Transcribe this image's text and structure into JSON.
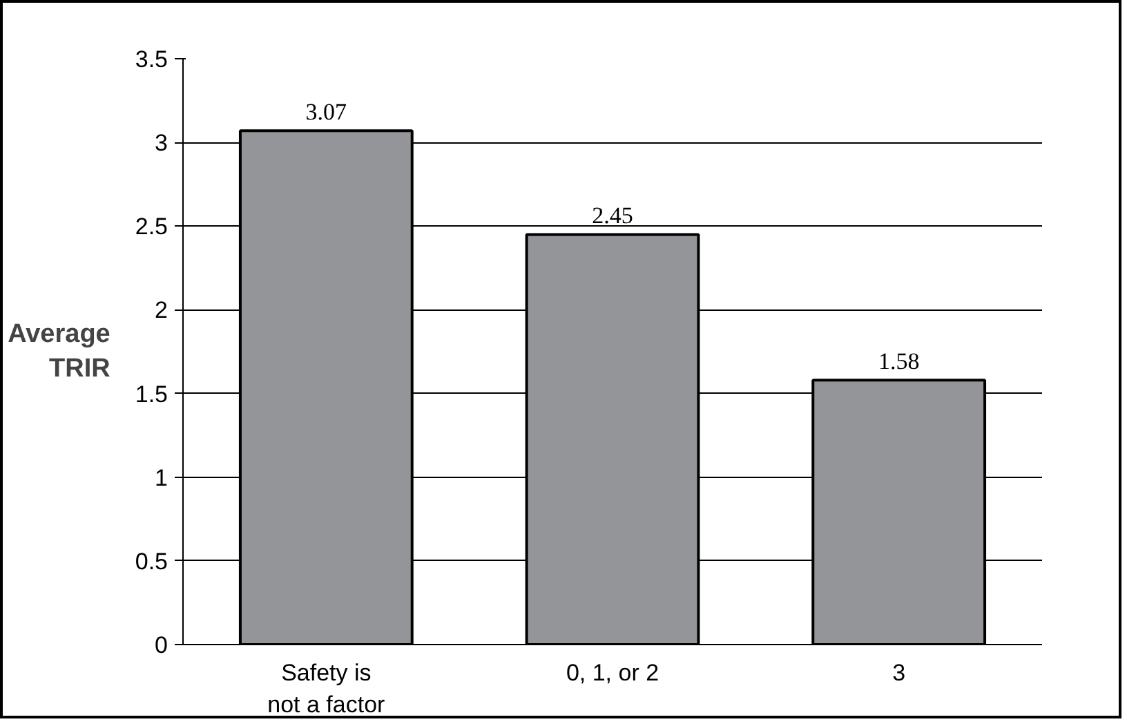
{
  "chart_data": {
    "type": "bar",
    "ylabel": "Average TRIR",
    "categories": [
      "Safety is not a factor",
      "0, 1, or 2",
      "3"
    ],
    "values": [
      3.07,
      2.45,
      1.58
    ],
    "color": "#939598",
    "ylim": [
      0,
      3.5
    ],
    "yticks": [
      0,
      0.5,
      1,
      1.5,
      2,
      2.5,
      3,
      3.5
    ],
    "grid": "y",
    "data_labels": true
  }
}
